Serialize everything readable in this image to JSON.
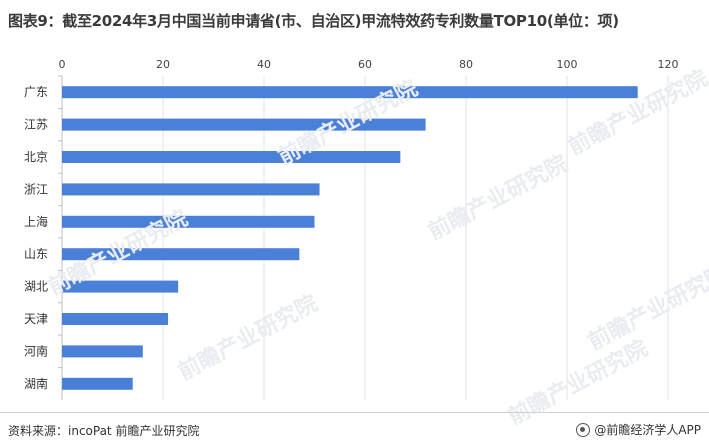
{
  "title": "图表9：截至2024年3月中国当前申请省(市、自治区)甲流特效药专利数量TOP10(单位：项)",
  "source": "资料来源：incoPat 前瞻产业研究院",
  "brand": "@前瞻经济学人APP",
  "watermark": "前瞻产业研究院",
  "colors": {
    "bar": "#4a80d8",
    "grid": "#e3e3e3",
    "axis": "#bfbfbf"
  },
  "chart_data": {
    "type": "bar",
    "orientation": "horizontal",
    "categories": [
      "广东",
      "江苏",
      "北京",
      "浙江",
      "上海",
      "山东",
      "湖北",
      "天津",
      "河南",
      "湖南"
    ],
    "values": [
      114,
      72,
      67,
      51,
      50,
      47,
      23,
      21,
      16,
      14
    ],
    "xticks": [
      0,
      20,
      40,
      60,
      80,
      100,
      120
    ],
    "xlim": [
      0,
      120
    ],
    "xaxis_position": "top",
    "grid": true,
    "legend": false
  }
}
